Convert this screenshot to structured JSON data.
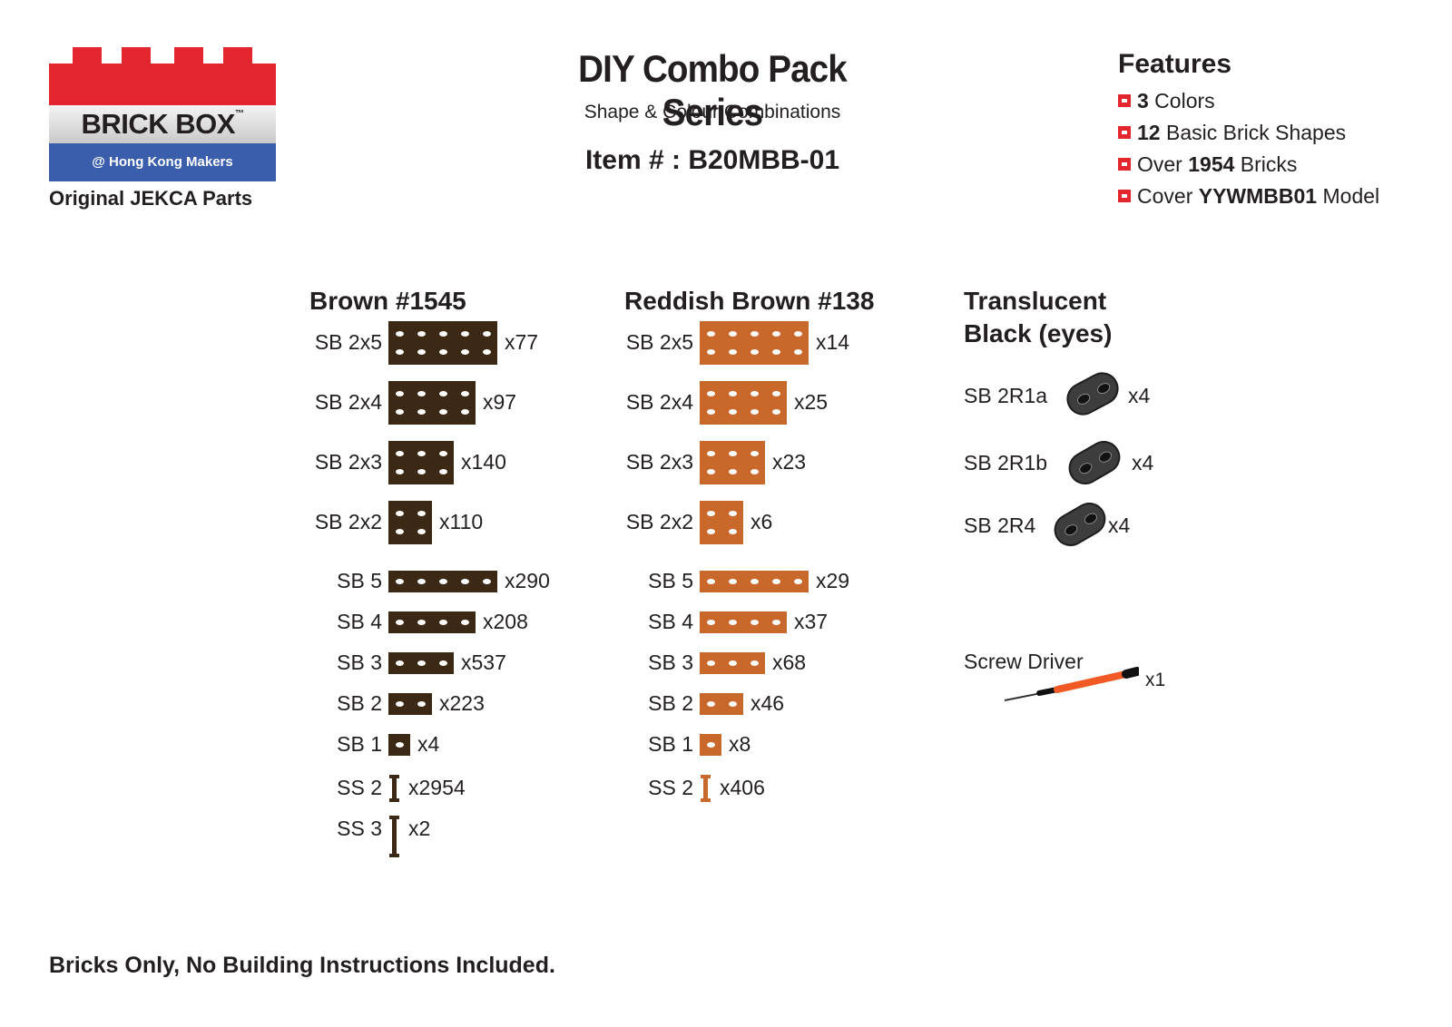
{
  "logo": {
    "brand": "BRICK BOX",
    "tm": "™",
    "sub": "@ Hong Kong Makers",
    "tagline": "Original JEKCA Parts"
  },
  "header": {
    "title": "DIY Combo Pack Series",
    "subtitle": "Shape & Colour Combinations",
    "item": "Item # : B20MBB-01"
  },
  "features": {
    "title": "Features",
    "items": [
      {
        "bold": "3",
        "text": " Colors"
      },
      {
        "bold": "12",
        "text": " Basic Brick Shapes"
      },
      {
        "pre": "Over ",
        "bold": "1954",
        "text": " Bricks"
      },
      {
        "pre": "Cover ",
        "bold": "YYWMBB01",
        "text": " Model"
      }
    ]
  },
  "colors": {
    "brown": "#3b2815",
    "reddish_brown": "#c8692b",
    "translucent_black": "#3d3d3d",
    "accent_red": "#e3262e",
    "logo_blue": "#3a5eac"
  },
  "brown": {
    "title": "Brown #1545",
    "parts": [
      {
        "label": "SB 2x5",
        "qty": "x77"
      },
      {
        "label": "SB 2x4",
        "qty": "x97"
      },
      {
        "label": "SB 2x3",
        "qty": "x140"
      },
      {
        "label": "SB 2x2",
        "qty": "x110"
      },
      {
        "label": "SB 5",
        "qty": "x290"
      },
      {
        "label": "SB 4",
        "qty": "x208"
      },
      {
        "label": "SB 3",
        "qty": "x537"
      },
      {
        "label": "SB 2",
        "qty": "x223"
      },
      {
        "label": "SB 1",
        "qty": "x4"
      },
      {
        "label": "SS 2",
        "qty": "x2954"
      },
      {
        "label": "SS 3",
        "qty": "x2"
      }
    ]
  },
  "reddish": {
    "title": "Reddish Brown #138",
    "parts": [
      {
        "label": "SB 2x5",
        "qty": "x14"
      },
      {
        "label": "SB 2x4",
        "qty": "x25"
      },
      {
        "label": "SB 2x3",
        "qty": "x23"
      },
      {
        "label": "SB 2x2",
        "qty": "x6"
      },
      {
        "label": "SB 5",
        "qty": "x29"
      },
      {
        "label": "SB 4",
        "qty": "x37"
      },
      {
        "label": "SB 3",
        "qty": "x68"
      },
      {
        "label": "SB 2",
        "qty": "x46"
      },
      {
        "label": "SB 1",
        "qty": "x8"
      },
      {
        "label": "SS 2",
        "qty": "x406"
      }
    ]
  },
  "translucent": {
    "title_line1": "Translucent",
    "title_line2": "Black (eyes)",
    "parts": [
      {
        "label": "SB 2R1a",
        "qty": "x4"
      },
      {
        "label": "SB 2R1b",
        "qty": "x4"
      },
      {
        "label": "SB 2R4",
        "qty": "x4"
      }
    ]
  },
  "tool": {
    "label": "Screw Driver",
    "qty": "x1"
  },
  "footer": "Bricks Only, No Building Instructions Included."
}
